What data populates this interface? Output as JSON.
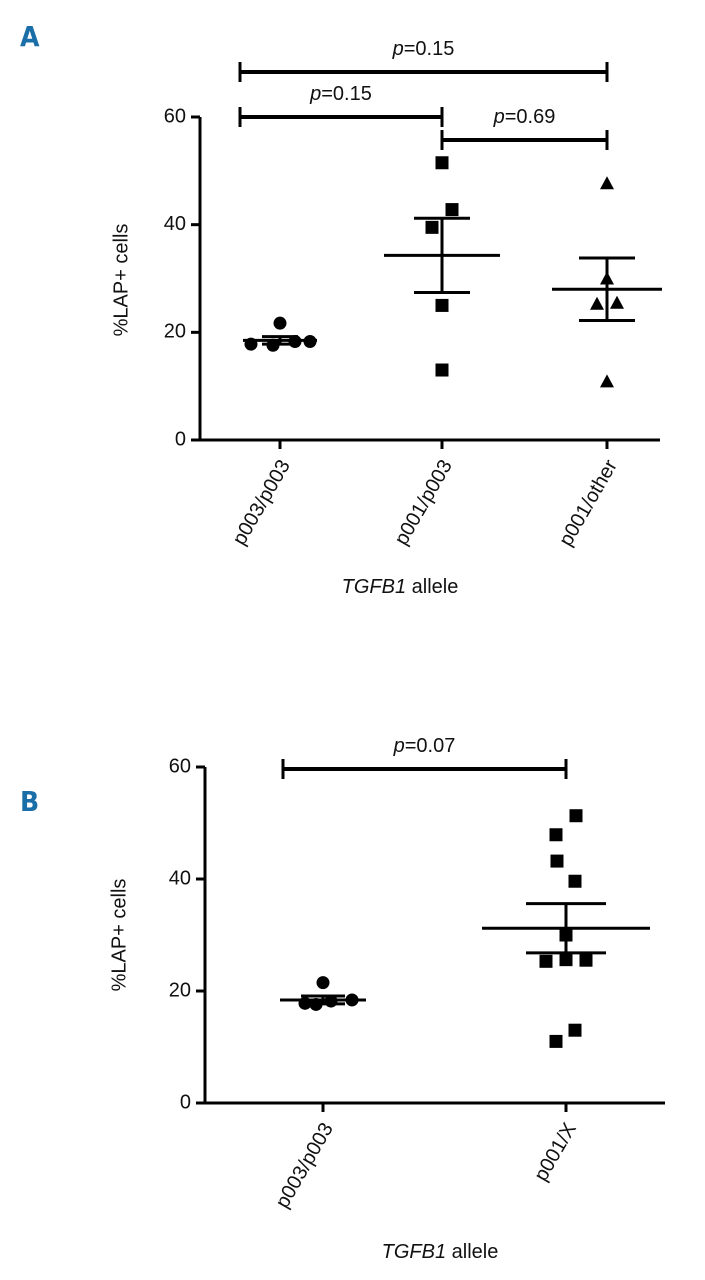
{
  "chart_data": [
    {
      "type": "dotplot",
      "panel": "A",
      "ylabel": "%LAP+ cells",
      "xlabel": "TGFB1 allele",
      "categories": [
        "p003/p003",
        "p001/p003",
        "p001/other"
      ],
      "markers": [
        "circle",
        "square",
        "triangle"
      ],
      "points": [
        [
          21.7,
          17.8,
          17.6,
          18.3,
          18.3
        ],
        [
          51.5,
          42.8,
          39.5,
          25,
          13
        ],
        [
          47.7,
          30,
          25.3,
          25.5,
          10.9
        ]
      ],
      "means": [
        18.5,
        34.3,
        28
      ],
      "errors": [
        0.7,
        6.9,
        5.8
      ],
      "ylim": [
        0,
        60
      ],
      "yticks": [
        0,
        20,
        40,
        60
      ],
      "color": "#000000",
      "comparisons": [
        {
          "groups": [
            0,
            2
          ],
          "label": "p=0.15"
        },
        {
          "groups": [
            0,
            1
          ],
          "label": "p=0.15"
        },
        {
          "groups": [
            1,
            2
          ],
          "label": "p=0.69"
        }
      ]
    },
    {
      "type": "dotplot",
      "panel": "B",
      "ylabel": "%LAP+ cells",
      "xlabel": "TGFB1 allele",
      "categories": [
        "p003/p003",
        "p001/X"
      ],
      "markers": [
        "circle",
        "square"
      ],
      "points": [
        [
          21.5,
          17.8,
          17.6,
          18.2,
          18.4
        ],
        [
          51.3,
          47.9,
          43.2,
          39.6,
          30,
          25.3,
          25.6,
          25.5,
          13,
          11
        ]
      ],
      "means": [
        18.4,
        31.2
      ],
      "errors": [
        0.7,
        4.4
      ],
      "ylim": [
        0,
        60
      ],
      "yticks": [
        0,
        20,
        40,
        60
      ],
      "color": "#000000",
      "comparisons": [
        {
          "groups": [
            0,
            1
          ],
          "label": "p=0.07"
        }
      ]
    }
  ]
}
